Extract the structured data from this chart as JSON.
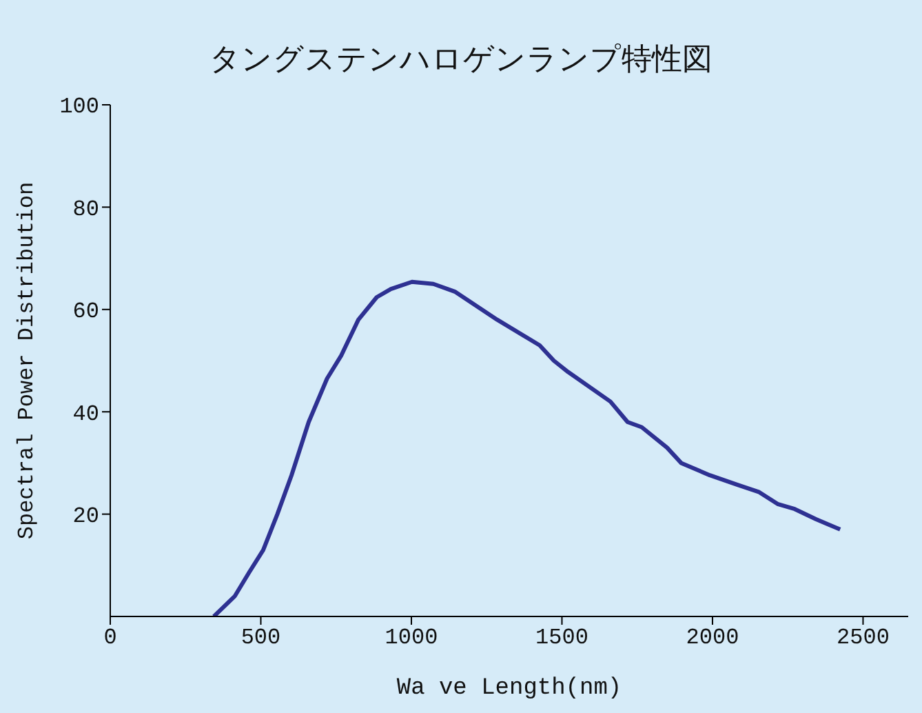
{
  "chart_data": {
    "type": "line",
    "title": "タングステンハロゲンランプ特性図",
    "xlabel": "Wa ve Length(nm)",
    "ylabel": "Spectral Power Distribution",
    "x": [
      344,
      414,
      461,
      508,
      555,
      602,
      659,
      720,
      767,
      824,
      885,
      932,
      1002,
      1073,
      1144,
      1285,
      1426,
      1473,
      1520,
      1661,
      1718,
      1765,
      1849,
      1896,
      1991,
      2085,
      2155,
      2216,
      2273,
      2344,
      2424
    ],
    "series": [
      {
        "color": "#2e3192",
        "values": [
          0,
          4,
          8.6,
          13,
          20,
          27.6,
          38,
          46.5,
          51,
          58,
          62.4,
          64,
          65.4,
          65,
          63.5,
          58,
          53,
          50,
          47.8,
          42,
          38,
          37,
          33,
          30,
          27.6,
          25.7,
          24.3,
          22,
          21,
          19,
          17
        ]
      }
    ],
    "xlim": [
      0,
      2650
    ],
    "xticks": [
      0,
      500,
      1000,
      1500,
      2000,
      2500
    ],
    "ylim": [
      0,
      100
    ],
    "yticks": [
      20,
      40,
      60,
      80,
      100
    ],
    "grid": false,
    "legend": false,
    "marker": "none",
    "line_style": "solid"
  }
}
